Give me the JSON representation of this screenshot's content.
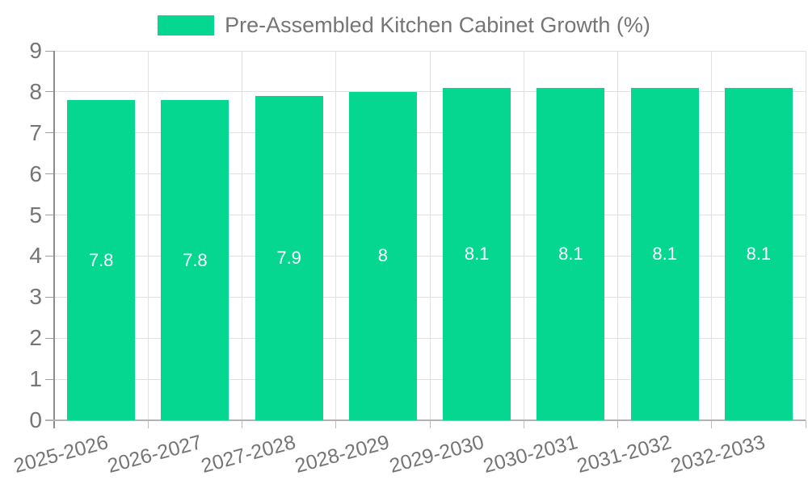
{
  "chart_data": {
    "type": "bar",
    "title": "",
    "legend": {
      "label": "Pre-Assembled Kitchen Cabinet Growth (%)",
      "position": "top"
    },
    "categories": [
      "2025-2026",
      "2026-2027",
      "2027-2028",
      "2028-2029",
      "2029-2030",
      "2030-2031",
      "2031-2032",
      "2032-2033"
    ],
    "values": [
      7.8,
      7.8,
      7.9,
      8,
      8.1,
      8.1,
      8.1,
      8.1
    ],
    "bar_labels": [
      "7.8",
      "7.8",
      "7.9",
      "8",
      "8.1",
      "8.1",
      "8.1",
      "8.1"
    ],
    "xlabel": "",
    "ylabel": "",
    "ylim": [
      0,
      9
    ],
    "y_ticks": [
      0,
      1,
      2,
      3,
      4,
      5,
      6,
      7,
      8,
      9
    ],
    "grid": true,
    "x_label_rotation_deg": -15,
    "colors": {
      "bar": "#05d791",
      "grid": "#e0e0e0",
      "axis_text": "#757575",
      "bar_label_text": "#ffffff",
      "y_axis_line": "#8c8c8c",
      "x_axis_line": "#b3b3b3"
    }
  }
}
